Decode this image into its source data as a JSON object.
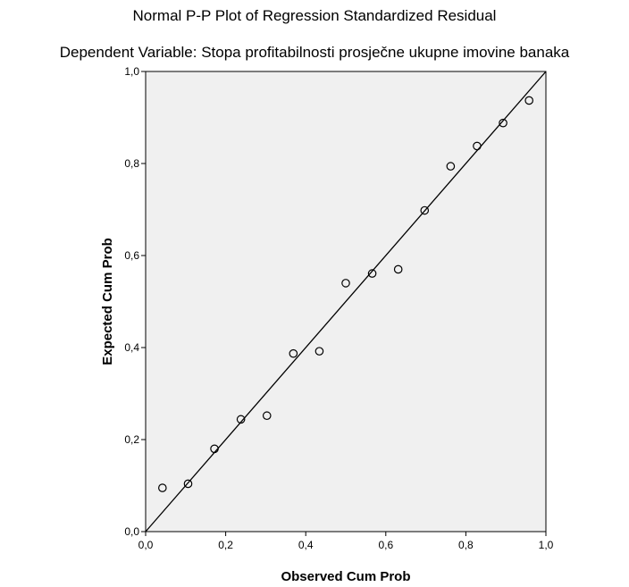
{
  "chart_data": {
    "type": "scatter",
    "title": "Normal P-P Plot of Regression Standardized Residual",
    "subtitle": "Dependent Variable: Stopa profitabilnosti prosječne ukupne imovine banaka",
    "xlabel": "Observed Cum Prob",
    "ylabel": "Expected Cum Prob",
    "xlim": [
      0,
      1
    ],
    "ylim": [
      0,
      1
    ],
    "xticks": [
      "0,0",
      "0,2",
      "0,4",
      "0,6",
      "0,8",
      "1,0"
    ],
    "yticks": [
      "0,0",
      "0,2",
      "0,4",
      "0,6",
      "0,8",
      "1,0"
    ],
    "grid": false,
    "reference_line": {
      "from": [
        0,
        0
      ],
      "to": [
        1,
        1
      ]
    },
    "points": [
      {
        "x": 0.042,
        "y": 0.095
      },
      {
        "x": 0.106,
        "y": 0.104
      },
      {
        "x": 0.172,
        "y": 0.18
      },
      {
        "x": 0.238,
        "y": 0.244
      },
      {
        "x": 0.303,
        "y": 0.252
      },
      {
        "x": 0.369,
        "y": 0.387
      },
      {
        "x": 0.434,
        "y": 0.392
      },
      {
        "x": 0.5,
        "y": 0.54
      },
      {
        "x": 0.566,
        "y": 0.561
      },
      {
        "x": 0.631,
        "y": 0.57
      },
      {
        "x": 0.697,
        "y": 0.698
      },
      {
        "x": 0.762,
        "y": 0.794
      },
      {
        "x": 0.828,
        "y": 0.838
      },
      {
        "x": 0.893,
        "y": 0.888
      },
      {
        "x": 0.958,
        "y": 0.937
      }
    ]
  },
  "colors": {
    "plot_background": "#f0f0f0",
    "marker_stroke": "#000000",
    "line": "#000000"
  }
}
